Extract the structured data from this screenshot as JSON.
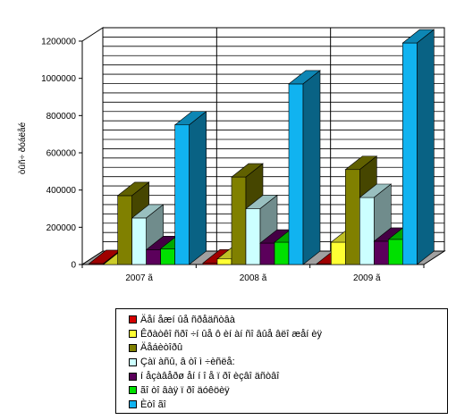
{
  "chart_data": {
    "type": "bar",
    "ylabel": "òûñ÷ ðóáëåé",
    "ylim": [
      0,
      1200000
    ],
    "ytick_labels": [
      "0",
      "200000",
      "400000",
      "600000",
      "800000",
      "1000000",
      "1200000"
    ],
    "categories": [
      "2007 ã",
      "2008 ã",
      "2009 ã"
    ],
    "grid": true,
    "legend_position": "bottom",
    "series": [
      {
        "name": "Äåí åæí ûå ñðåäñòâà",
        "color": "#d40000",
        "values": [
          5000,
          8000,
          4000
        ]
      },
      {
        "name": "Êðàòêî ñðî ÷í ûå ô èí àí ñî âûå âëî æåí èÿ",
        "color": "#ffff33",
        "values": [
          0,
          30000,
          120000
        ]
      },
      {
        "name": "Äåáèòîðû",
        "color": "#808000",
        "values": [
          370000,
          470000,
          510000
        ]
      },
      {
        "name": "Çàï àñû, â òî ì   ÷èñëå:",
        "color": "#ccffff",
        "values": [
          250000,
          300000,
          360000
        ]
      },
      {
        "name": "í åçàâåðø åí í î å ï ðî èçâî äñòâî",
        "color": "#5b005b",
        "values": [
          80000,
          115000,
          125000
        ]
      },
      {
        "name": "ãî òî âàÿ ï ðî äóêöèÿ",
        "color": "#00e000",
        "values": [
          85000,
          120000,
          135000
        ]
      },
      {
        "name": "Èòî ãî",
        "color": "#11b3f0",
        "values": [
          750000,
          970000,
          1190000
        ]
      }
    ]
  }
}
